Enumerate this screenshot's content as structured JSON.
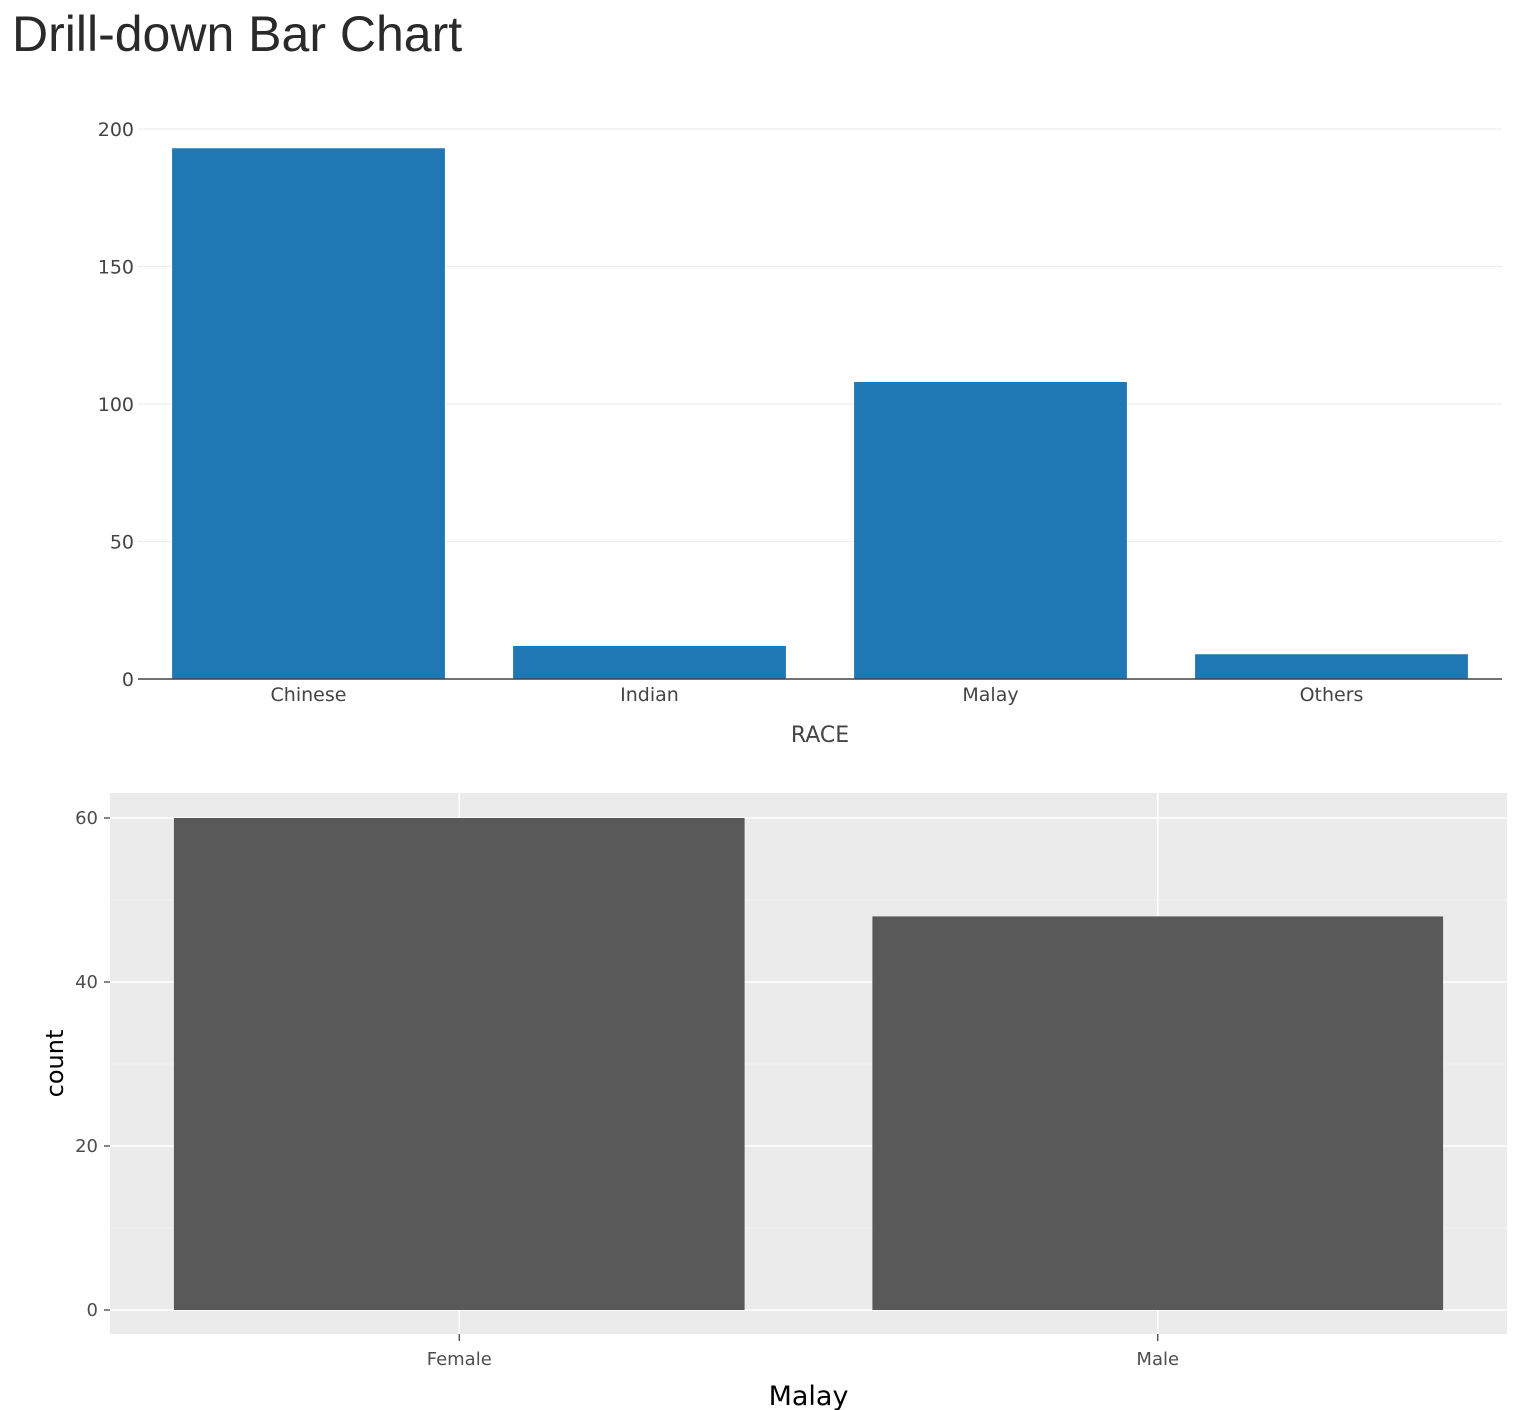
{
  "page": {
    "title": "Drill-down Bar Chart"
  },
  "colors": {
    "top_bar": "#1f77b4",
    "bottom_bar": "#595959",
    "bottom_panel": "#ebebeb",
    "gridline_top": "#eeeeee"
  },
  "chart_data": [
    {
      "type": "bar",
      "categories": [
        "Chinese",
        "Indian",
        "Malay",
        "Others"
      ],
      "values": [
        193,
        12,
        108,
        9
      ],
      "title": "",
      "xlabel": "RACE",
      "ylabel": "",
      "ylim": [
        0,
        200
      ],
      "yticks": [
        0,
        50,
        100,
        150,
        200
      ],
      "grid": true
    },
    {
      "type": "bar",
      "categories": [
        "Female",
        "Male"
      ],
      "values": [
        60,
        48
      ],
      "title": "",
      "xlabel": "Malay",
      "ylabel": "count",
      "ylim": [
        0,
        60
      ],
      "yticks": [
        0,
        20,
        40,
        60
      ],
      "grid": true
    }
  ]
}
